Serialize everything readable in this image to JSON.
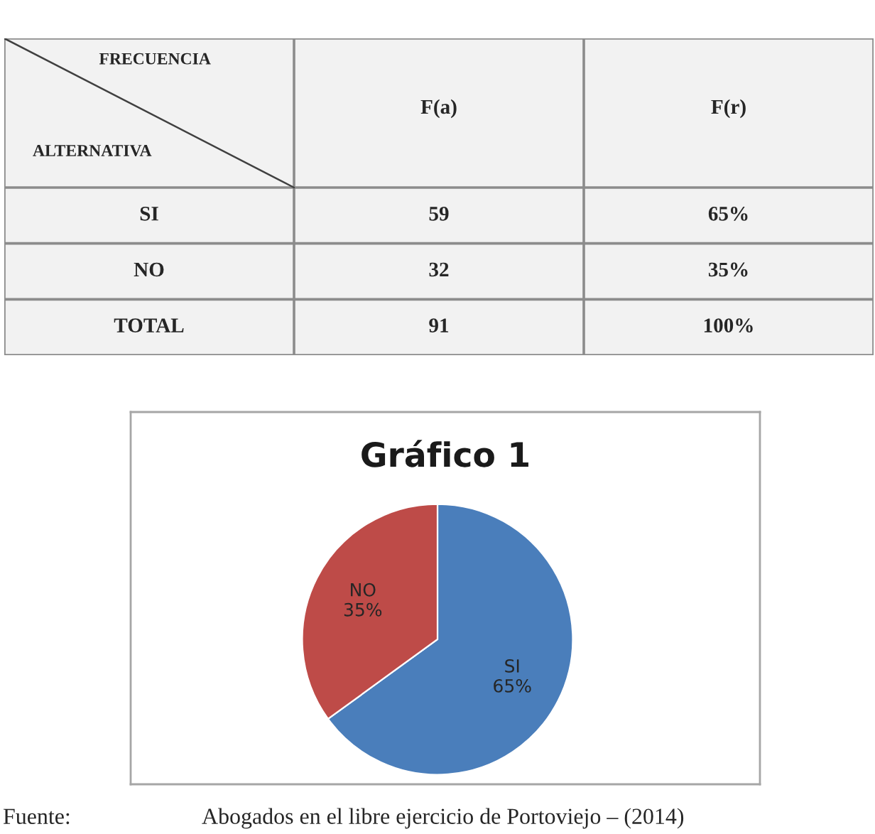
{
  "chart_data": [
    {
      "type": "other",
      "xlabel": "FRECUENCIA",
      "ylabel": "ALTERNATIVA",
      "categories": [
        "F(a)",
        "F(r)"
      ],
      "y_categories": [
        "SI",
        "NO",
        "TOTAL"
      ],
      "cell_labels": [
        [
          "59",
          "65%"
        ],
        [
          "32",
          "35%"
        ],
        [
          "91",
          "100%"
        ]
      ]
    },
    {
      "type": "pie",
      "title": "Gráfico 1",
      "categories": [
        "SI",
        "NO"
      ],
      "values": [
        65,
        35
      ],
      "colors": [
        "#4a7ebb",
        "#be4b48"
      ],
      "value_labels": [
        "65%",
        "35%"
      ],
      "annotations": [
        "Fuente:",
        "Abogados en el libre ejercicio de Portoviejo – (2014)"
      ]
    }
  ]
}
